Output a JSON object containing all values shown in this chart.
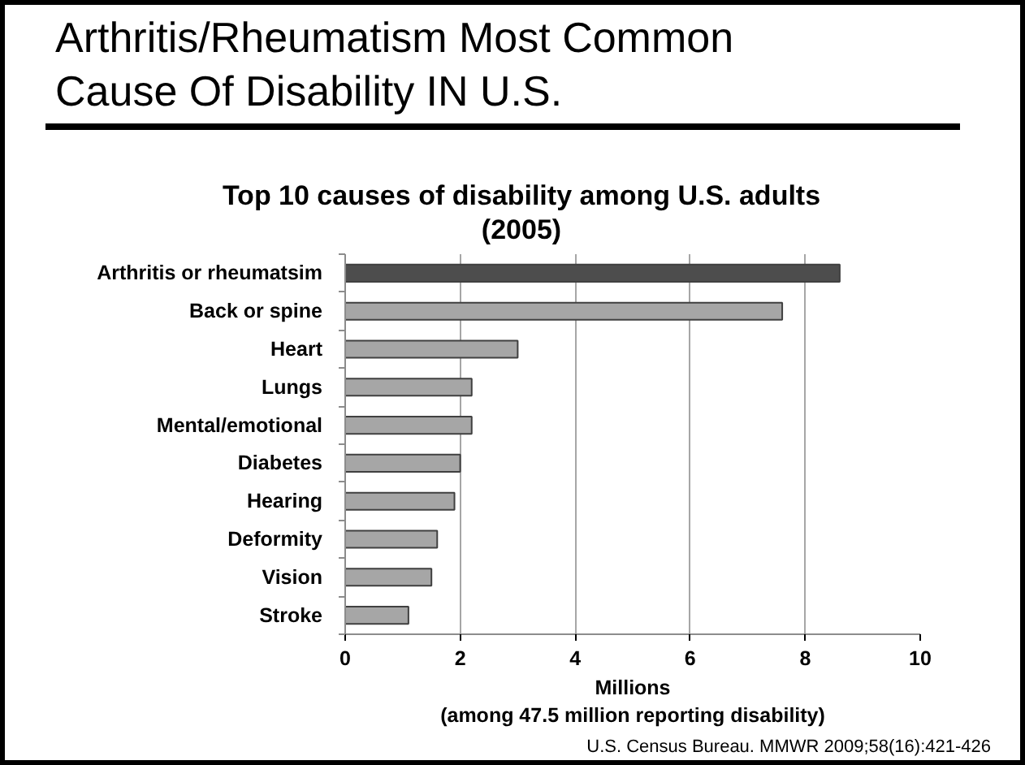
{
  "chart_data": {
    "type": "bar",
    "orientation": "horizontal",
    "title": "Arthritis/Rheumatism Most Common Cause Of Disability IN U.S.",
    "subtitle": "Top 10 causes of disability among U.S. adults (2005)",
    "xlabel": "Millions\n(among 47.5 million reporting disability)",
    "categories": [
      "Arthritis or rheumatsim",
      "Back or spine",
      "Heart",
      "Lungs",
      "Mental/emotional",
      "Diabetes",
      "Hearing",
      "Deformity",
      "Vision",
      "Stroke"
    ],
    "values": [
      8.6,
      7.6,
      3.0,
      2.2,
      2.2,
      2.0,
      1.9,
      1.6,
      1.5,
      1.1
    ],
    "colors": [
      "#4d4d4d",
      "#a6a6a6",
      "#a6a6a6",
      "#a6a6a6",
      "#a6a6a6",
      "#a6a6a6",
      "#a6a6a6",
      "#a6a6a6",
      "#a6a6a6",
      "#a6a6a6"
    ],
    "xlim": [
      0,
      10
    ],
    "xticks": [
      0,
      2,
      4,
      6,
      8,
      10
    ],
    "grid": "x",
    "annotations": [
      "U.S. Census Bureau. MMWR 2009;58(16):421-426"
    ]
  }
}
